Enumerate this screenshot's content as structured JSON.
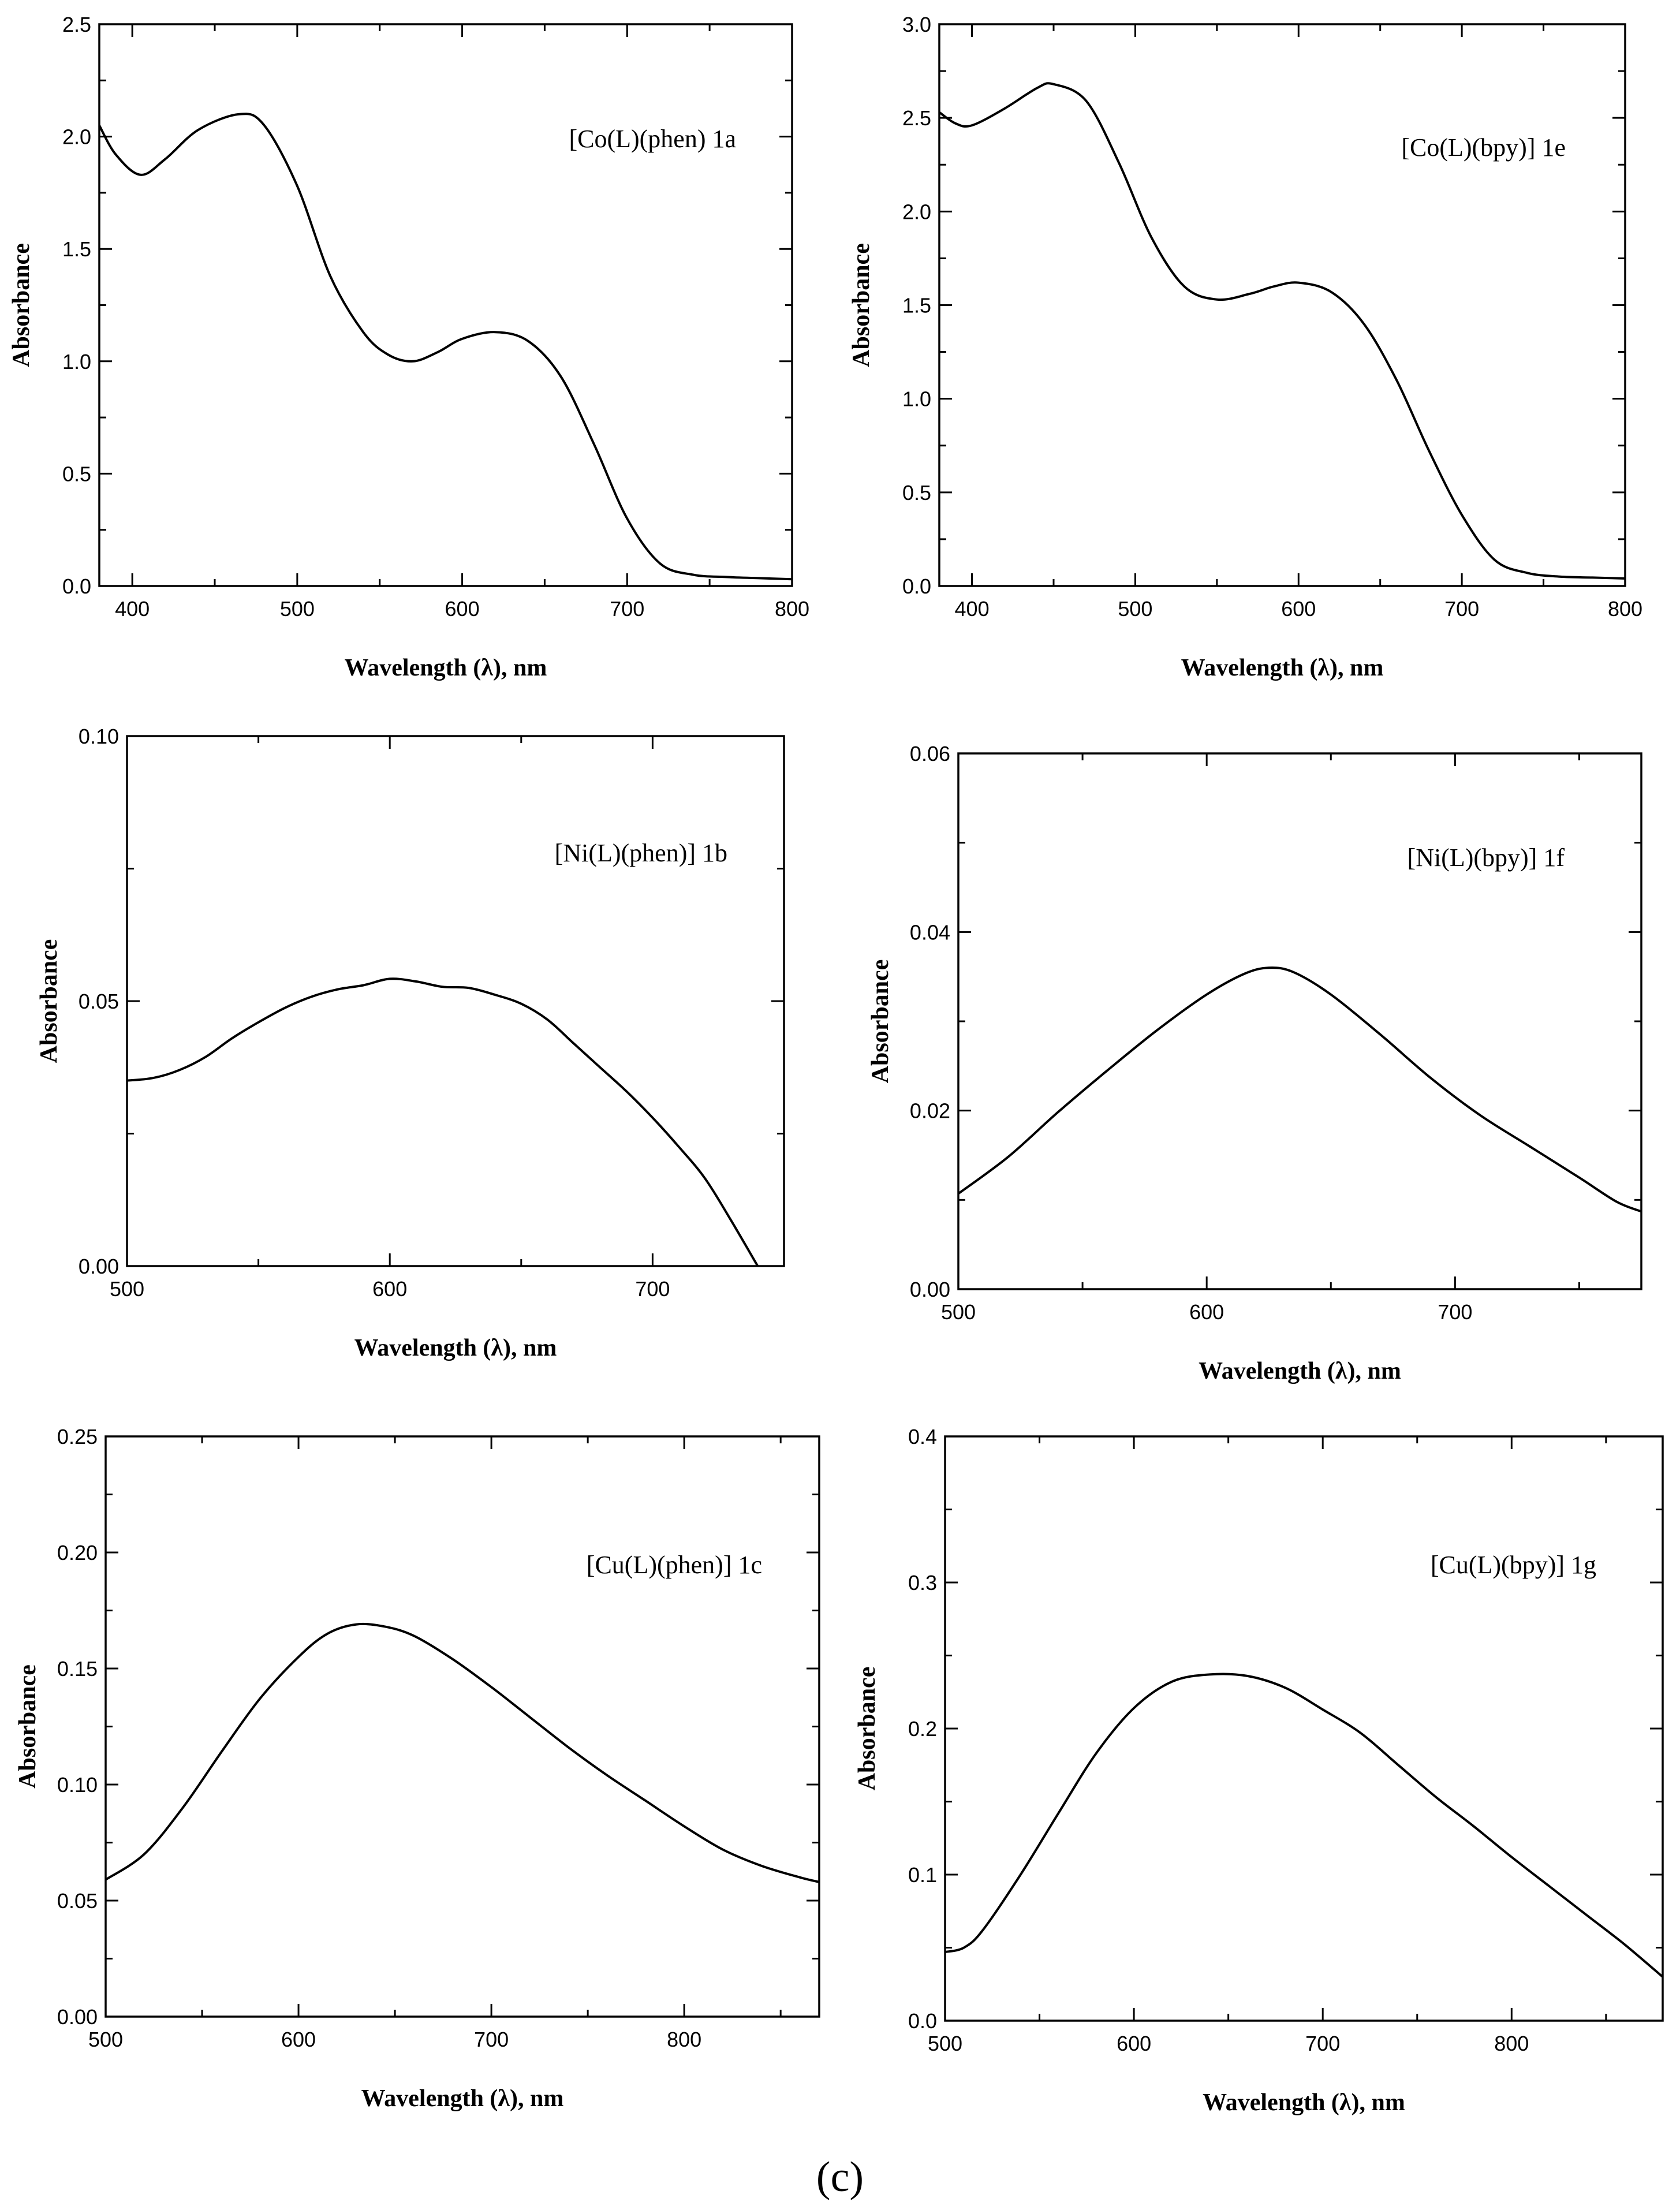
{
  "figure_label": "(c)",
  "chart_data": [
    {
      "id": "co-phen",
      "type": "line",
      "annotation": "[Co(L)(phen) 1a",
      "xlabel": "Wavelength (λ), nm",
      "ylabel": "Absorbance",
      "xlim": [
        380,
        800
      ],
      "ylim": [
        0,
        2.5
      ],
      "xticks": [
        400,
        500,
        600,
        700,
        800
      ],
      "yticks": [
        "0.0",
        "0.5",
        "1.0",
        "1.5",
        "2.0",
        "2.5"
      ],
      "series": [
        {
          "name": "[Co(L)(phen) 1a",
          "x": [
            380,
            390,
            405,
            420,
            440,
            465,
            480,
            500,
            520,
            540,
            555,
            570,
            585,
            600,
            620,
            640,
            660,
            680,
            700,
            720,
            740,
            760,
            780,
            800
          ],
          "y": [
            2.05,
            1.92,
            1.83,
            1.9,
            2.03,
            2.1,
            2.05,
            1.78,
            1.38,
            1.13,
            1.03,
            1.0,
            1.04,
            1.1,
            1.13,
            1.09,
            0.93,
            0.63,
            0.3,
            0.1,
            0.05,
            0.04,
            0.035,
            0.03
          ]
        }
      ]
    },
    {
      "id": "co-bpy",
      "type": "line",
      "annotation": "[Co(L)(bpy)] 1e",
      "xlabel": "Wavelength (λ), nm",
      "ylabel": "Absorbance",
      "xlim": [
        380,
        800
      ],
      "ylim": [
        0,
        3.0
      ],
      "xticks": [
        400,
        500,
        600,
        700,
        800
      ],
      "yticks": [
        "0.0",
        "0.5",
        "1.0",
        "1.5",
        "2.0",
        "2.5",
        "3.0"
      ],
      "series": [
        {
          "name": "[Co(L)(bpy)] 1e",
          "x": [
            380,
            390,
            400,
            420,
            440,
            450,
            470,
            490,
            510,
            530,
            550,
            570,
            585,
            600,
            620,
            640,
            660,
            680,
            700,
            720,
            740,
            760,
            780,
            800
          ],
          "y": [
            2.53,
            2.47,
            2.46,
            2.55,
            2.66,
            2.68,
            2.59,
            2.26,
            1.86,
            1.6,
            1.53,
            1.56,
            1.6,
            1.62,
            1.57,
            1.4,
            1.1,
            0.72,
            0.38,
            0.14,
            0.07,
            0.05,
            0.045,
            0.04
          ]
        }
      ]
    },
    {
      "id": "ni-phen",
      "type": "line",
      "annotation": "[Ni(L)(phen)] 1b",
      "xlabel": "Wavelength (λ), nm",
      "ylabel": "Absorbance",
      "xlim": [
        500,
        750
      ],
      "ylim": [
        0,
        0.1
      ],
      "xticks": [
        500,
        600,
        700
      ],
      "yticks": [
        "0.00",
        "0.05",
        "0.10"
      ],
      "series": [
        {
          "name": "[Ni(L)(phen)] 1b",
          "x": [
            500,
            510,
            520,
            530,
            540,
            550,
            560,
            570,
            580,
            590,
            600,
            610,
            620,
            630,
            640,
            650,
            660,
            670,
            680,
            690,
            700,
            710,
            720,
            730,
            740
          ],
          "y": [
            0.035,
            0.0355,
            0.037,
            0.0395,
            0.043,
            0.046,
            0.0487,
            0.0508,
            0.0522,
            0.053,
            0.0542,
            0.0537,
            0.0527,
            0.0525,
            0.0512,
            0.0495,
            0.0465,
            0.042,
            0.0375,
            0.033,
            0.028,
            0.0225,
            0.0165,
            0.0085,
            0.0
          ]
        }
      ]
    },
    {
      "id": "ni-bpy",
      "type": "line",
      "annotation": "[Ni(L)(bpy)] 1f",
      "xlabel": "Wavelength (λ), nm",
      "ylabel": "Absorbance",
      "xlim": [
        500,
        775
      ],
      "ylim": [
        0,
        0.06
      ],
      "xticks": [
        500,
        600,
        700
      ],
      "yticks": [
        "0.00",
        "0.02",
        "0.04",
        "0.06"
      ],
      "series": [
        {
          "name": "[Ni(L)(bpy)] 1f",
          "x": [
            500,
            520,
            540,
            560,
            580,
            600,
            615,
            625,
            635,
            650,
            670,
            690,
            710,
            730,
            750,
            765,
            775
          ],
          "y": [
            0.0107,
            0.0148,
            0.0198,
            0.0245,
            0.029,
            0.033,
            0.0353,
            0.036,
            0.0355,
            0.033,
            0.0285,
            0.0237,
            0.0195,
            0.016,
            0.0125,
            0.0098,
            0.0087
          ]
        }
      ]
    },
    {
      "id": "cu-phen",
      "type": "line",
      "annotation": "[Cu(L)(phen)] 1c",
      "xlabel": "Wavelength (λ), nm",
      "ylabel": "Absorbance",
      "xlim": [
        500,
        870
      ],
      "ylim": [
        0,
        0.25
      ],
      "xticks": [
        500,
        600,
        700,
        800
      ],
      "yticks": [
        "0.00",
        "0.05",
        "0.10",
        "0.15",
        "0.20",
        "0.25"
      ],
      "series": [
        {
          "name": "[Cu(L)(phen)] 1c",
          "x": [
            500,
            520,
            540,
            560,
            580,
            600,
            615,
            630,
            645,
            660,
            680,
            700,
            720,
            740,
            760,
            780,
            800,
            820,
            840,
            860,
            870
          ],
          "y": [
            0.059,
            0.07,
            0.09,
            0.114,
            0.137,
            0.155,
            0.165,
            0.169,
            0.168,
            0.164,
            0.154,
            0.142,
            0.129,
            0.116,
            0.104,
            0.093,
            0.082,
            0.072,
            0.065,
            0.06,
            0.058
          ]
        }
      ]
    },
    {
      "id": "cu-bpy",
      "type": "line",
      "annotation": "[Cu(L)(bpy)] 1g",
      "xlabel": "Wavelength (λ), nm",
      "ylabel": "Absorbance",
      "xlim": [
        500,
        880
      ],
      "ylim": [
        0,
        0.4
      ],
      "xticks": [
        500,
        600,
        700,
        800
      ],
      "yticks": [
        "0.0",
        "0.1",
        "0.2",
        "0.3",
        "0.4"
      ],
      "series": [
        {
          "name": "[Cu(L)(bpy)] 1g",
          "x": [
            500,
            510,
            520,
            540,
            560,
            580,
            600,
            620,
            640,
            660,
            680,
            700,
            720,
            740,
            760,
            780,
            800,
            820,
            840,
            860,
            880
          ],
          "y": [
            0.047,
            0.05,
            0.062,
            0.1,
            0.142,
            0.183,
            0.214,
            0.232,
            0.237,
            0.236,
            0.228,
            0.213,
            0.197,
            0.175,
            0.153,
            0.133,
            0.112,
            0.092,
            0.072,
            0.052,
            0.03
          ]
        }
      ]
    }
  ]
}
